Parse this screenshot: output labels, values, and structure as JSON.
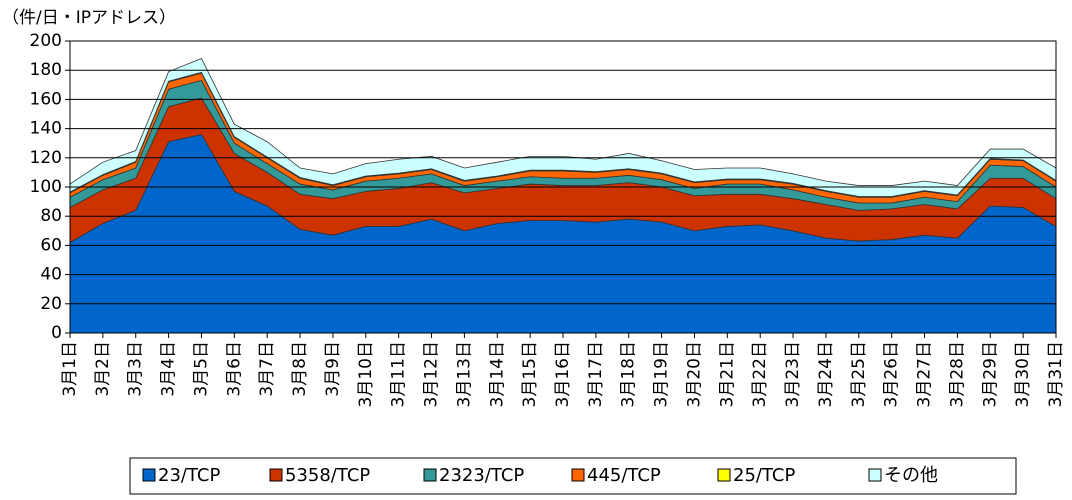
{
  "chart_data": {
    "type": "stacked_area",
    "y_label": "（件/日・IPアドレス）",
    "categories": [
      "3月1日",
      "3月2日",
      "3月3日",
      "3月4日",
      "3月5日",
      "3月6日",
      "3月7日",
      "3月8日",
      "3月9日",
      "3月10日",
      "3月11日",
      "3月12日",
      "3月13日",
      "3月14日",
      "3月15日",
      "3月16日",
      "3月17日",
      "3月18日",
      "3月19日",
      "3月20日",
      "3月21日",
      "3月22日",
      "3月23日",
      "3月24日",
      "3月25日",
      "3月26日",
      "3月27日",
      "3月28日",
      "3月29日",
      "3月30日",
      "3月31日"
    ],
    "series": [
      {
        "name": "23/TCP",
        "color": "#0066cc",
        "values": [
          62,
          75,
          84,
          131,
          136,
          97,
          87,
          71,
          67,
          73,
          73,
          78,
          70,
          75,
          77,
          77,
          76,
          78,
          76,
          70,
          73,
          74,
          70,
          65,
          63,
          64,
          67,
          65,
          87,
          86,
          73
        ]
      },
      {
        "name": "5358/TCP",
        "color": "#cc3300",
        "values": [
          24,
          23,
          22,
          24,
          25,
          26,
          23,
          24,
          25,
          24,
          26,
          25,
          26,
          24,
          25,
          24,
          25,
          25,
          24,
          24,
          22,
          21,
          22,
          23,
          21,
          21,
          21,
          20,
          19,
          20,
          19
        ]
      },
      {
        "name": "2323/TCP",
        "color": "#339999",
        "values": [
          7,
          7,
          7,
          12,
          12,
          7,
          6,
          7,
          6,
          7,
          7,
          6,
          5,
          5,
          5,
          5,
          5,
          5,
          5,
          5,
          7,
          7,
          6,
          5,
          5,
          4,
          5,
          5,
          9,
          8,
          8
        ]
      },
      {
        "name": "445/TCP",
        "color": "#ff6600",
        "values": [
          3,
          3,
          4,
          5,
          5,
          4,
          4,
          4,
          3,
          3,
          3,
          3,
          3,
          3,
          4,
          5,
          4,
          4,
          4,
          4,
          3,
          3,
          4,
          4,
          4,
          4,
          4,
          4,
          4,
          4,
          4
        ]
      },
      {
        "name": "25/TCP",
        "color": "#ffff00",
        "values": [
          0.5,
          0.5,
          0.5,
          0.5,
          0.5,
          0.5,
          0.5,
          0.5,
          0.5,
          0.5,
          0.5,
          0.5,
          0.5,
          0.5,
          0.5,
          0.5,
          0.5,
          0.5,
          0.5,
          0.5,
          0.5,
          0.5,
          0.5,
          0.5,
          0.5,
          0.5,
          0.5,
          0.5,
          0.5,
          0.5,
          0.5
        ]
      },
      {
        "name": "その他",
        "color": "#ccffff",
        "values": [
          5.5,
          8.5,
          7.5,
          6.5,
          9.5,
          8.5,
          10.5,
          6.5,
          7.5,
          8.5,
          9.5,
          8.5,
          8.5,
          9.5,
          9.5,
          9.5,
          8.5,
          10.5,
          8.5,
          8.5,
          7.5,
          7.5,
          6.5,
          6.5,
          7.5,
          7.5,
          6.5,
          6.5,
          6.5,
          7.5,
          8.5
        ]
      }
    ],
    "ylim": [
      0,
      200
    ],
    "yticks": [
      0,
      20,
      40,
      60,
      80,
      100,
      120,
      140,
      160,
      180,
      200
    ],
    "grid": true
  }
}
